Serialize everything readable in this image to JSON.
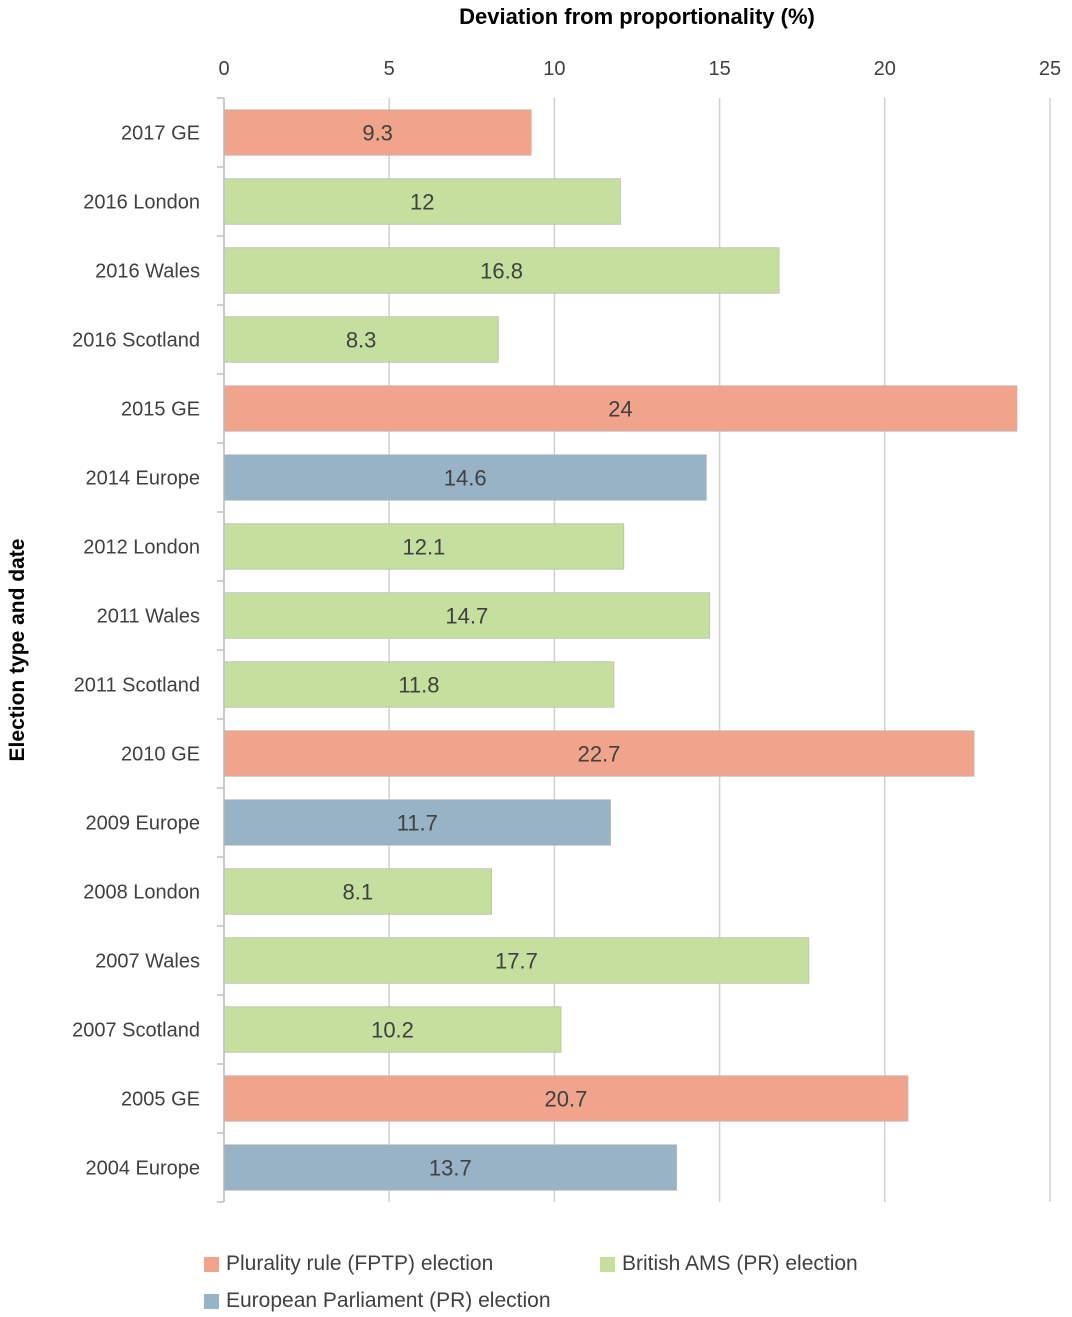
{
  "chart_data": {
    "type": "bar",
    "orientation": "horizontal",
    "xlabel": "Deviation from proportionality (%)",
    "ylabel": "Election type and date",
    "xlim": [
      0,
      25
    ],
    "xticks": [
      0,
      5,
      10,
      15,
      20,
      25
    ],
    "grid": true,
    "legend_position": "bottom",
    "categories": [
      "2017 GE",
      "2016 London",
      "2016 Wales",
      "2016 Scotland",
      "2015 GE",
      "2014 Europe",
      "2012 London",
      "2011 Wales",
      "2011 Scotland",
      "2010 GE",
      "2009 Europe",
      "2008 London",
      "2007 Wales",
      "2007 Scotland",
      "2005 GE",
      "2004 Europe"
    ],
    "values": [
      9.3,
      12,
      16.8,
      8.3,
      24,
      14.6,
      12.1,
      14.7,
      11.8,
      22.7,
      11.7,
      8.1,
      17.7,
      10.2,
      20.7,
      13.7
    ],
    "data_labels": [
      "9.3",
      "12",
      "16.8",
      "8.3",
      "24",
      "14.6",
      "12.1",
      "14.7",
      "11.8",
      "22.7",
      "11.7",
      "8.1",
      "17.7",
      "10.2",
      "20.7",
      "13.7"
    ],
    "groups": [
      "fptp",
      "ams",
      "ams",
      "ams",
      "fptp",
      "euro",
      "ams",
      "ams",
      "ams",
      "fptp",
      "euro",
      "ams",
      "ams",
      "ams",
      "fptp",
      "euro"
    ],
    "series": [
      {
        "key": "fptp",
        "name": "Plurality rule (FPTP) election",
        "color": "#f0a48c"
      },
      {
        "key": "ams",
        "name": "British AMS (PR) election",
        "color": "#c4df9e"
      },
      {
        "key": "euro",
        "name": "European Parliament (PR) election",
        "color": "#98b2c6"
      }
    ]
  }
}
